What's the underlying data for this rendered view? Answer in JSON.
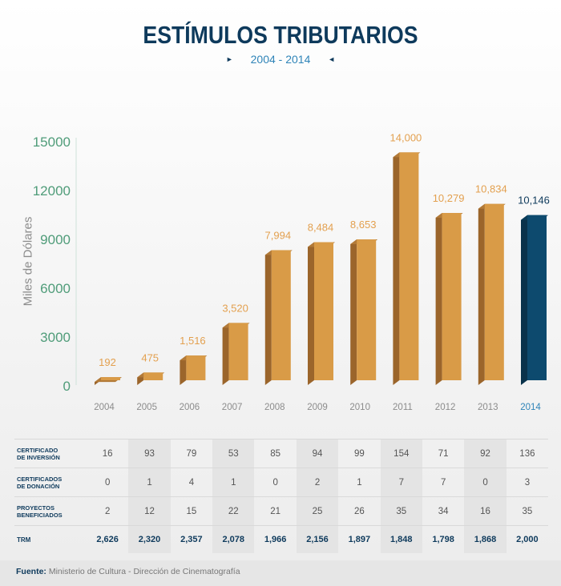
{
  "title": "ESTÍMULOS TRIBUTARIOS",
  "subtitle": "2004 - 2014",
  "subtitle_marks": {
    "left": "►",
    "right": "◄"
  },
  "chart_data": {
    "type": "bar",
    "categories": [
      "2004",
      "2005",
      "2006",
      "2007",
      "2008",
      "2009",
      "2010",
      "2011",
      "2012",
      "2013",
      "2014"
    ],
    "values": [
      192,
      475,
      1516,
      3520,
      7994,
      8484,
      8653,
      14000,
      10279,
      10834,
      10146
    ],
    "value_labels": [
      "192",
      "475",
      "1,516",
      "3,520",
      "7,994",
      "8,484",
      "8,653",
      "14,000",
      "10,279",
      "10,834",
      "10,146"
    ],
    "ylabel": "Miles de Dólares",
    "yticks": [
      "0",
      "3000",
      "6000",
      "9000",
      "12000",
      "15000"
    ],
    "ylim": [
      0,
      15000
    ],
    "highlight_index": 10,
    "colors": {
      "bar_front": "#d99b47",
      "bar_side": "#9b652b",
      "bar_top": "#b27a38",
      "highlight_front": "#0d4a6e",
      "highlight_side": "#09324b",
      "highlight_top": "#0a3c59",
      "value_label": "#e3a04f",
      "highlight_label": "#0e3a5c",
      "ytick": "#4f9c79",
      "xtick": "#8c8c8c",
      "highlight_xtick": "#2f84b8"
    }
  },
  "table": {
    "rows": [
      {
        "label": "CERTIFICADO\nDE INVERSIÓN",
        "values": [
          "16",
          "93",
          "79",
          "53",
          "85",
          "94",
          "99",
          "154",
          "71",
          "92",
          "136"
        ]
      },
      {
        "label": "CERTIFICADOS\nDE DONACIÓN",
        "values": [
          "0",
          "1",
          "4",
          "1",
          "0",
          "2",
          "1",
          "7",
          "7",
          "0",
          "3"
        ]
      },
      {
        "label": "PROYECTOS\nBENEFICIADOS",
        "values": [
          "2",
          "12",
          "15",
          "22",
          "21",
          "25",
          "26",
          "35",
          "34",
          "16",
          "35"
        ]
      },
      {
        "label": "TRM",
        "values": [
          "2,626",
          "2,320",
          "2,357",
          "2,078",
          "1,966",
          "2,156",
          "1,897",
          "1,848",
          "1,798",
          "1,868",
          "2,000"
        ]
      }
    ]
  },
  "source": {
    "label": "Fuente:",
    "text": "Ministerio de Cultura - Dirección de Cinematografía"
  }
}
